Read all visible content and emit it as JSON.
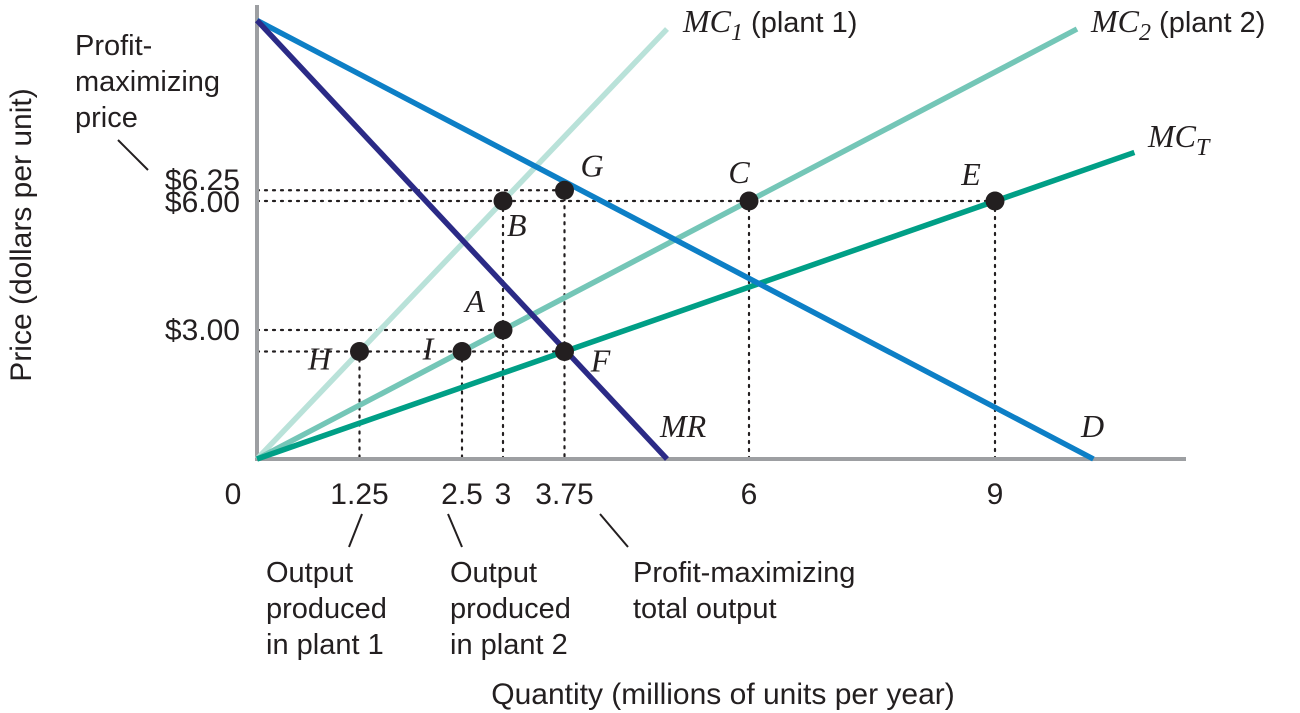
{
  "chart_data": {
    "type": "line",
    "xlabel": "Quantity (millions of units per year)",
    "ylabel": "Price (dollars per unit)",
    "xlim": [
      0,
      11.4
    ],
    "ylim": [
      0,
      11.4
    ],
    "x_ticks": [
      {
        "value": 0,
        "label": "0"
      },
      {
        "value": 1.25,
        "label": "1.25"
      },
      {
        "value": 2.5,
        "label": "2.5"
      },
      {
        "value": 3,
        "label": "3"
      },
      {
        "value": 3.75,
        "label": "3.75"
      },
      {
        "value": 6,
        "label": "6"
      },
      {
        "value": 9,
        "label": "9"
      }
    ],
    "y_ticks": [
      {
        "value": 3,
        "label": "$3.00"
      },
      {
        "value": 6,
        "label": "$6.00"
      },
      {
        "value": 6.25,
        "label": "$6.25"
      }
    ],
    "series": [
      {
        "name": "MC₁ (plant 1)",
        "main": "MC",
        "sub": "1",
        "rest": " (plant 1)",
        "color": "#b9e2d9",
        "x": [
          0,
          5
        ],
        "y": [
          0,
          10
        ]
      },
      {
        "name": "MC₂ (plant 2)",
        "main": "MC",
        "sub": "2",
        "rest": " (plant 2)",
        "color": "#74c6b7",
        "x": [
          0,
          10
        ],
        "y": [
          0,
          10
        ]
      },
      {
        "name": "MC_T",
        "main": "MC",
        "sub": "T",
        "rest": "",
        "color": "#009f86",
        "x": [
          0,
          10.7
        ],
        "y": [
          0,
          7.13
        ]
      },
      {
        "name": "D",
        "main": "D",
        "sub": "",
        "rest": "",
        "color": "#0d7fc6",
        "x": [
          0,
          10.2
        ],
        "y": [
          10.2,
          0
        ]
      },
      {
        "name": "MR",
        "main": "MR",
        "sub": "",
        "rest": "",
        "color": "#2b2a86",
        "x": [
          0,
          5.0
        ],
        "y": [
          10.2,
          0
        ]
      }
    ],
    "points": [
      {
        "label": "G",
        "x": 3.75,
        "y": 6.25
      },
      {
        "label": "B",
        "x": 3,
        "y": 6
      },
      {
        "label": "C",
        "x": 6,
        "y": 6
      },
      {
        "label": "E",
        "x": 9,
        "y": 6
      },
      {
        "label": "A",
        "x": 3,
        "y": 3
      },
      {
        "label": "H",
        "x": 1.25,
        "y": 2.5
      },
      {
        "label": "I",
        "x": 2.5,
        "y": 2.5
      },
      {
        "label": "F",
        "x": 3.75,
        "y": 2.5
      }
    ],
    "annotations": {
      "price": [
        "Profit-",
        "maximizing",
        "price"
      ],
      "plant1": [
        "Output",
        "produced",
        "in plant 1"
      ],
      "plant2": [
        "Output",
        "produced",
        "in plant 2"
      ],
      "total": [
        "Profit-maximizing",
        "total output"
      ]
    },
    "grid": false,
    "legend": "none"
  }
}
